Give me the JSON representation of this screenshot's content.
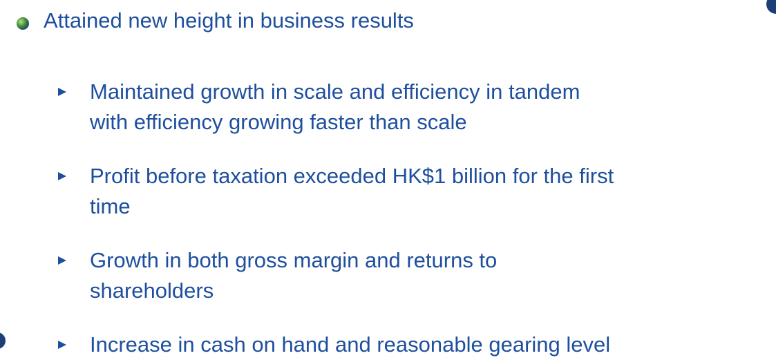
{
  "heading": "Attained new height in business results",
  "items": [
    {
      "lines": [
        "Maintained growth in scale and efficiency in tandem",
        "with efficiency growing faster than scale"
      ]
    },
    {
      "lines": [
        "Profit before taxation exceeded HK$1 billion for the first",
        "time"
      ]
    },
    {
      "lines": [
        "Growth in both gross margin and returns to",
        "shareholders"
      ]
    },
    {
      "lines": [
        "Increase in cash on hand and reasonable gearing level"
      ]
    }
  ]
}
